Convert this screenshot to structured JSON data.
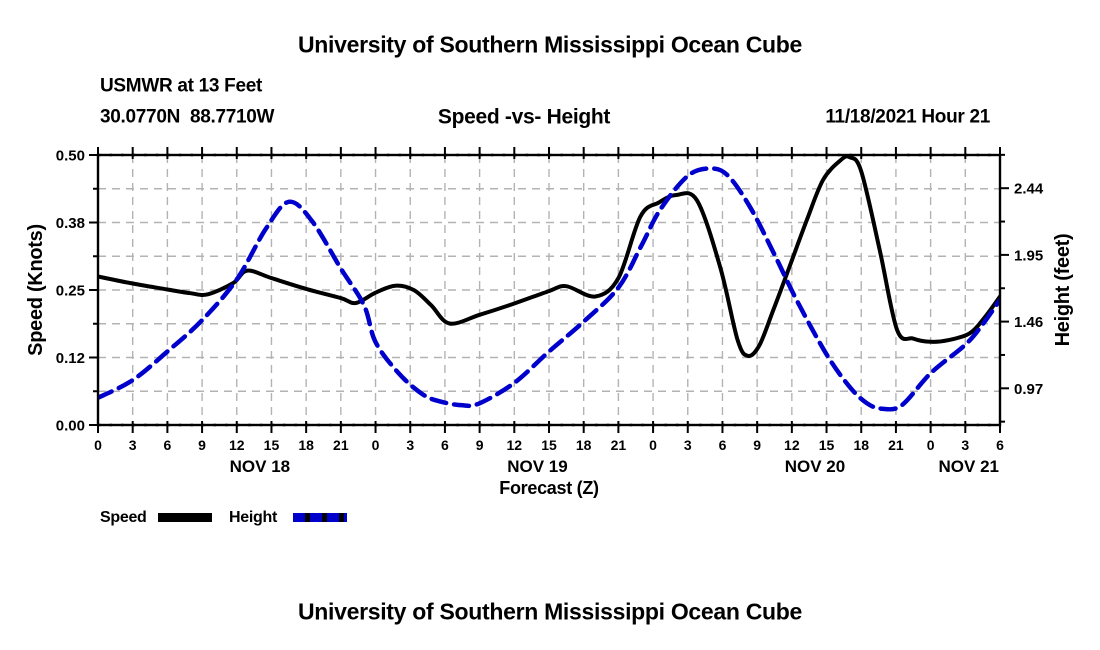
{
  "titles": {
    "top": "University of Southern Mississippi Ocean Cube",
    "bottom": "University of Southern Mississippi Ocean Cube",
    "station": "USMWR at 13 Feet",
    "coords": "30.0770N  88.7710W",
    "subtitle": "Speed -vs- Height",
    "datetime": "11/18/2021 Hour 21"
  },
  "axes": {
    "left": {
      "label": "Speed (Knots)",
      "tick_labels": [
        "0.50",
        "0.38",
        "0.25",
        "0.12",
        "0.00"
      ],
      "tick_values": [
        0.5,
        0.375,
        0.25,
        0.125,
        0
      ],
      "minor_values": [
        0.4375,
        0.3125,
        0.1875,
        0.0625
      ],
      "range": [
        0,
        0.5
      ]
    },
    "right": {
      "label": "Height (feet)",
      "tick_labels": [
        "2.44",
        "1.95",
        "1.46",
        "0.97"
      ],
      "tick_values": [
        2.44,
        1.95,
        1.46,
        0.97
      ],
      "minor_values": [
        2.685,
        2.195,
        1.705,
        1.215,
        0.725
      ],
      "range": [
        0.7004,
        2.6839
      ]
    },
    "x": {
      "label": "Forecast (Z)",
      "range_hours": [
        0,
        78
      ],
      "major_step_hours": 3,
      "hour_labels": [
        "0",
        "3",
        "6",
        "9",
        "12",
        "15",
        "18",
        "21",
        "0",
        "3",
        "6",
        "9",
        "12",
        "15",
        "18",
        "21",
        "0",
        "3",
        "6",
        "9",
        "12",
        "15",
        "18",
        "21",
        "0",
        "3",
        "6"
      ],
      "day_labels": [
        {
          "label": "NOV 18",
          "hour": 14
        },
        {
          "label": "NOV 19",
          "hour": 38
        },
        {
          "label": "NOV 20",
          "hour": 62
        },
        {
          "label": "NOV 21",
          "hour": 75.3
        }
      ]
    }
  },
  "legend": [
    {
      "label": "Speed",
      "color": "#000000",
      "style": "solid"
    },
    {
      "label": "Height",
      "color": "#0000cc",
      "style": "dashed"
    }
  ],
  "colors": {
    "speed": "#000000",
    "height": "#0000cc",
    "grid": "#b3b3b3",
    "background": "#ffffff"
  },
  "chart_data": {
    "type": "line",
    "title": "Speed -vs- Height",
    "xlabel": "Forecast (Z)",
    "x_unit": "hours since 2021-11-18 00Z",
    "grid": "dashed gray, vertical every 3 h, horizontal every 0.0625 knots",
    "legend_position": "below plot, left",
    "series": [
      {
        "name": "Speed",
        "axis": "left",
        "unit": "knots",
        "color": "#000000",
        "style": "solid",
        "points": [
          [
            0,
            0.275
          ],
          [
            3,
            0.262
          ],
          [
            6,
            0.251
          ],
          [
            8,
            0.244
          ],
          [
            9.5,
            0.242
          ],
          [
            11.7,
            0.263
          ],
          [
            12.9,
            0.286
          ],
          [
            15,
            0.272
          ],
          [
            18,
            0.252
          ],
          [
            21,
            0.235
          ],
          [
            22.3,
            0.226
          ],
          [
            24,
            0.245
          ],
          [
            25.7,
            0.258
          ],
          [
            27.3,
            0.25
          ],
          [
            28.8,
            0.222
          ],
          [
            30.4,
            0.188
          ],
          [
            33,
            0.204
          ],
          [
            36,
            0.225
          ],
          [
            39,
            0.248
          ],
          [
            40.5,
            0.257
          ],
          [
            43,
            0.238
          ],
          [
            45,
            0.272
          ],
          [
            46.9,
            0.386
          ],
          [
            48.5,
            0.412
          ],
          [
            50,
            0.426
          ],
          [
            51.8,
            0.416
          ],
          [
            53.8,
            0.293
          ],
          [
            55.3,
            0.158
          ],
          [
            56.2,
            0.128
          ],
          [
            57.2,
            0.148
          ],
          [
            58.4,
            0.213
          ],
          [
            59.8,
            0.293
          ],
          [
            61.3,
            0.38
          ],
          [
            62.7,
            0.454
          ],
          [
            64.2,
            0.49
          ],
          [
            65,
            0.496
          ],
          [
            66,
            0.47
          ],
          [
            67.6,
            0.324
          ],
          [
            69.1,
            0.176
          ],
          [
            70.5,
            0.16
          ],
          [
            72,
            0.154
          ],
          [
            73.5,
            0.157
          ],
          [
            75.4,
            0.17
          ],
          [
            76.7,
            0.2
          ],
          [
            78,
            0.238
          ]
        ]
      },
      {
        "name": "Height",
        "axis": "right",
        "unit": "feet",
        "color": "#0000cc",
        "style": "dashed",
        "points": [
          [
            0,
            0.9
          ],
          [
            3,
            1.03
          ],
          [
            6,
            1.24
          ],
          [
            9,
            1.47
          ],
          [
            12,
            1.77
          ],
          [
            14.5,
            2.14
          ],
          [
            16.5,
            2.34
          ],
          [
            18.5,
            2.2
          ],
          [
            21,
            1.85
          ],
          [
            23,
            1.58
          ],
          [
            24,
            1.31
          ],
          [
            26,
            1.08
          ],
          [
            28,
            0.93
          ],
          [
            29.5,
            0.875
          ],
          [
            31.5,
            0.845
          ],
          [
            33,
            0.86
          ],
          [
            36,
            1.01
          ],
          [
            39,
            1.24
          ],
          [
            42,
            1.46
          ],
          [
            45,
            1.71
          ],
          [
            47,
            2.02
          ],
          [
            48.6,
            2.28
          ],
          [
            51,
            2.53
          ],
          [
            53,
            2.585
          ],
          [
            54.5,
            2.53
          ],
          [
            56.4,
            2.3
          ],
          [
            58.4,
            1.97
          ],
          [
            60.4,
            1.62
          ],
          [
            63,
            1.22
          ],
          [
            65,
            0.98
          ],
          [
            66.5,
            0.86
          ],
          [
            67.8,
            0.82
          ],
          [
            69.5,
            0.845
          ],
          [
            72,
            1.08
          ],
          [
            75,
            1.29
          ],
          [
            76.5,
            1.44
          ],
          [
            78,
            1.62
          ]
        ]
      }
    ],
    "ylim_left": [
      0,
      0.5
    ],
    "ylim_right": [
      0.7004,
      2.6839
    ]
  }
}
